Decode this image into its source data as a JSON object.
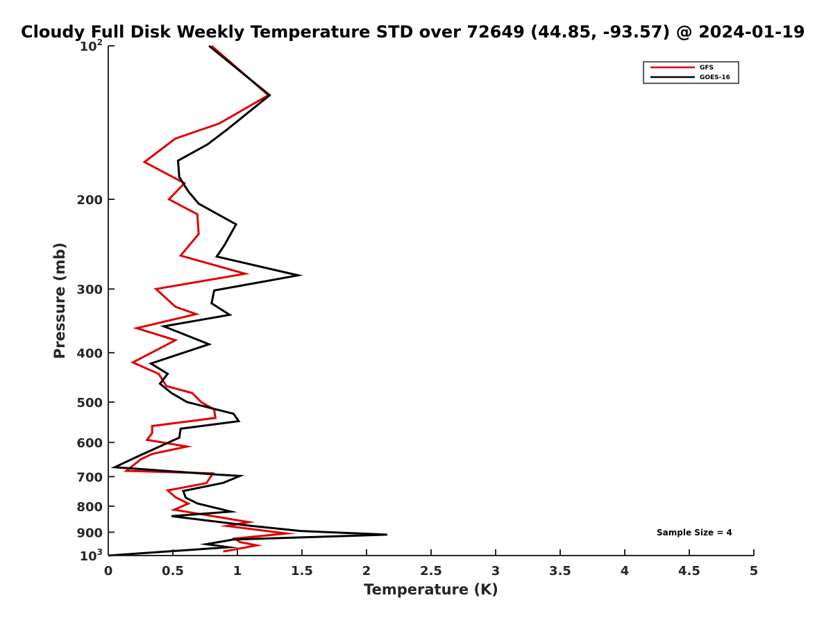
{
  "chart_data": {
    "type": "line",
    "title": "Cloudy Full Disk Weekly Temperature STD over 72649 (44.85, -93.57) @ 2024-01-19",
    "xlabel": "Temperature (K)",
    "ylabel": "Pressure (mb)",
    "xlim": [
      0,
      5
    ],
    "ylim": [
      100,
      1000
    ],
    "yscale": "log",
    "y_reversed": true,
    "x_ticks": [
      "0",
      "0.5",
      "1",
      "1.5",
      "2",
      "2.5",
      "3",
      "3.5",
      "4",
      "4.5",
      "5"
    ],
    "y_ticks": [
      {
        "value": 100,
        "base": "10",
        "exp": "2"
      },
      {
        "value": 200,
        "label": "200"
      },
      {
        "value": 300,
        "label": "300"
      },
      {
        "value": 400,
        "label": "400"
      },
      {
        "value": 500,
        "label": "500"
      },
      {
        "value": 600,
        "label": "600"
      },
      {
        "value": 700,
        "label": "700"
      },
      {
        "value": 800,
        "label": "800"
      },
      {
        "value": 900,
        "label": "900"
      },
      {
        "value": 1000,
        "base": "10",
        "exp": "3"
      }
    ],
    "grid": false,
    "legend_position": "top-right",
    "annotation": "Sample Size = 4",
    "series": [
      {
        "name": "GFS",
        "color": "#e00000",
        "points": [
          [
            0.8,
            100
          ],
          [
            1.24,
            125
          ],
          [
            0.86,
            142
          ],
          [
            0.52,
            152
          ],
          [
            0.28,
            169
          ],
          [
            0.59,
            186
          ],
          [
            0.47,
            200
          ],
          [
            0.69,
            214
          ],
          [
            0.7,
            234
          ],
          [
            0.56,
            258
          ],
          [
            1.06,
            280
          ],
          [
            0.37,
            300
          ],
          [
            0.52,
            325
          ],
          [
            0.68,
            336
          ],
          [
            0.22,
            358
          ],
          [
            0.52,
            378
          ],
          [
            0.19,
            418
          ],
          [
            0.39,
            440
          ],
          [
            0.45,
            465
          ],
          [
            0.65,
            480
          ],
          [
            0.72,
            500
          ],
          [
            0.82,
            517
          ],
          [
            0.83,
            537
          ],
          [
            0.34,
            557
          ],
          [
            0.34,
            575
          ],
          [
            0.3,
            593
          ],
          [
            0.61,
            611
          ],
          [
            0.34,
            632
          ],
          [
            0.25,
            648
          ],
          [
            0.14,
            682
          ],
          [
            0.81,
            690
          ],
          [
            0.76,
            721
          ],
          [
            0.46,
            745
          ],
          [
            0.52,
            768
          ],
          [
            0.62,
            791
          ],
          [
            0.51,
            813
          ],
          [
            1.09,
            860
          ],
          [
            0.92,
            875
          ],
          [
            1.38,
            905
          ],
          [
            0.98,
            926
          ],
          [
            1.02,
            941
          ],
          [
            1.15,
            955
          ],
          [
            0.89,
            982
          ]
        ]
      },
      {
        "name": "GOES-16",
        "color": "#000000",
        "points": [
          [
            0.78,
            100
          ],
          [
            1.25,
            125
          ],
          [
            0.92,
            146
          ],
          [
            0.77,
            156
          ],
          [
            0.54,
            168
          ],
          [
            0.55,
            181
          ],
          [
            0.62,
            193
          ],
          [
            0.7,
            204
          ],
          [
            0.99,
            224
          ],
          [
            0.9,
            246
          ],
          [
            0.84,
            259
          ],
          [
            1.47,
            282
          ],
          [
            0.82,
            302
          ],
          [
            0.8,
            320
          ],
          [
            0.94,
            337
          ],
          [
            0.43,
            355
          ],
          [
            0.78,
            385
          ],
          [
            0.33,
            420
          ],
          [
            0.46,
            440
          ],
          [
            0.4,
            460
          ],
          [
            0.49,
            480
          ],
          [
            0.61,
            500
          ],
          [
            0.97,
            527
          ],
          [
            1.01,
            545
          ],
          [
            0.56,
            564
          ],
          [
            0.55,
            587
          ],
          [
            0.24,
            637
          ],
          [
            0.05,
            671
          ],
          [
            0.82,
            693
          ],
          [
            1.02,
            698
          ],
          [
            0.89,
            720
          ],
          [
            0.58,
            747
          ],
          [
            0.6,
            770
          ],
          [
            0.69,
            790
          ],
          [
            0.95,
            820
          ],
          [
            0.49,
            837
          ],
          [
            1.1,
            874
          ],
          [
            1.49,
            895
          ],
          [
            2.16,
            910
          ],
          [
            0.97,
            930
          ],
          [
            0.76,
            950
          ],
          [
            0.93,
            963
          ],
          [
            0.0,
            1000
          ]
        ]
      }
    ]
  }
}
